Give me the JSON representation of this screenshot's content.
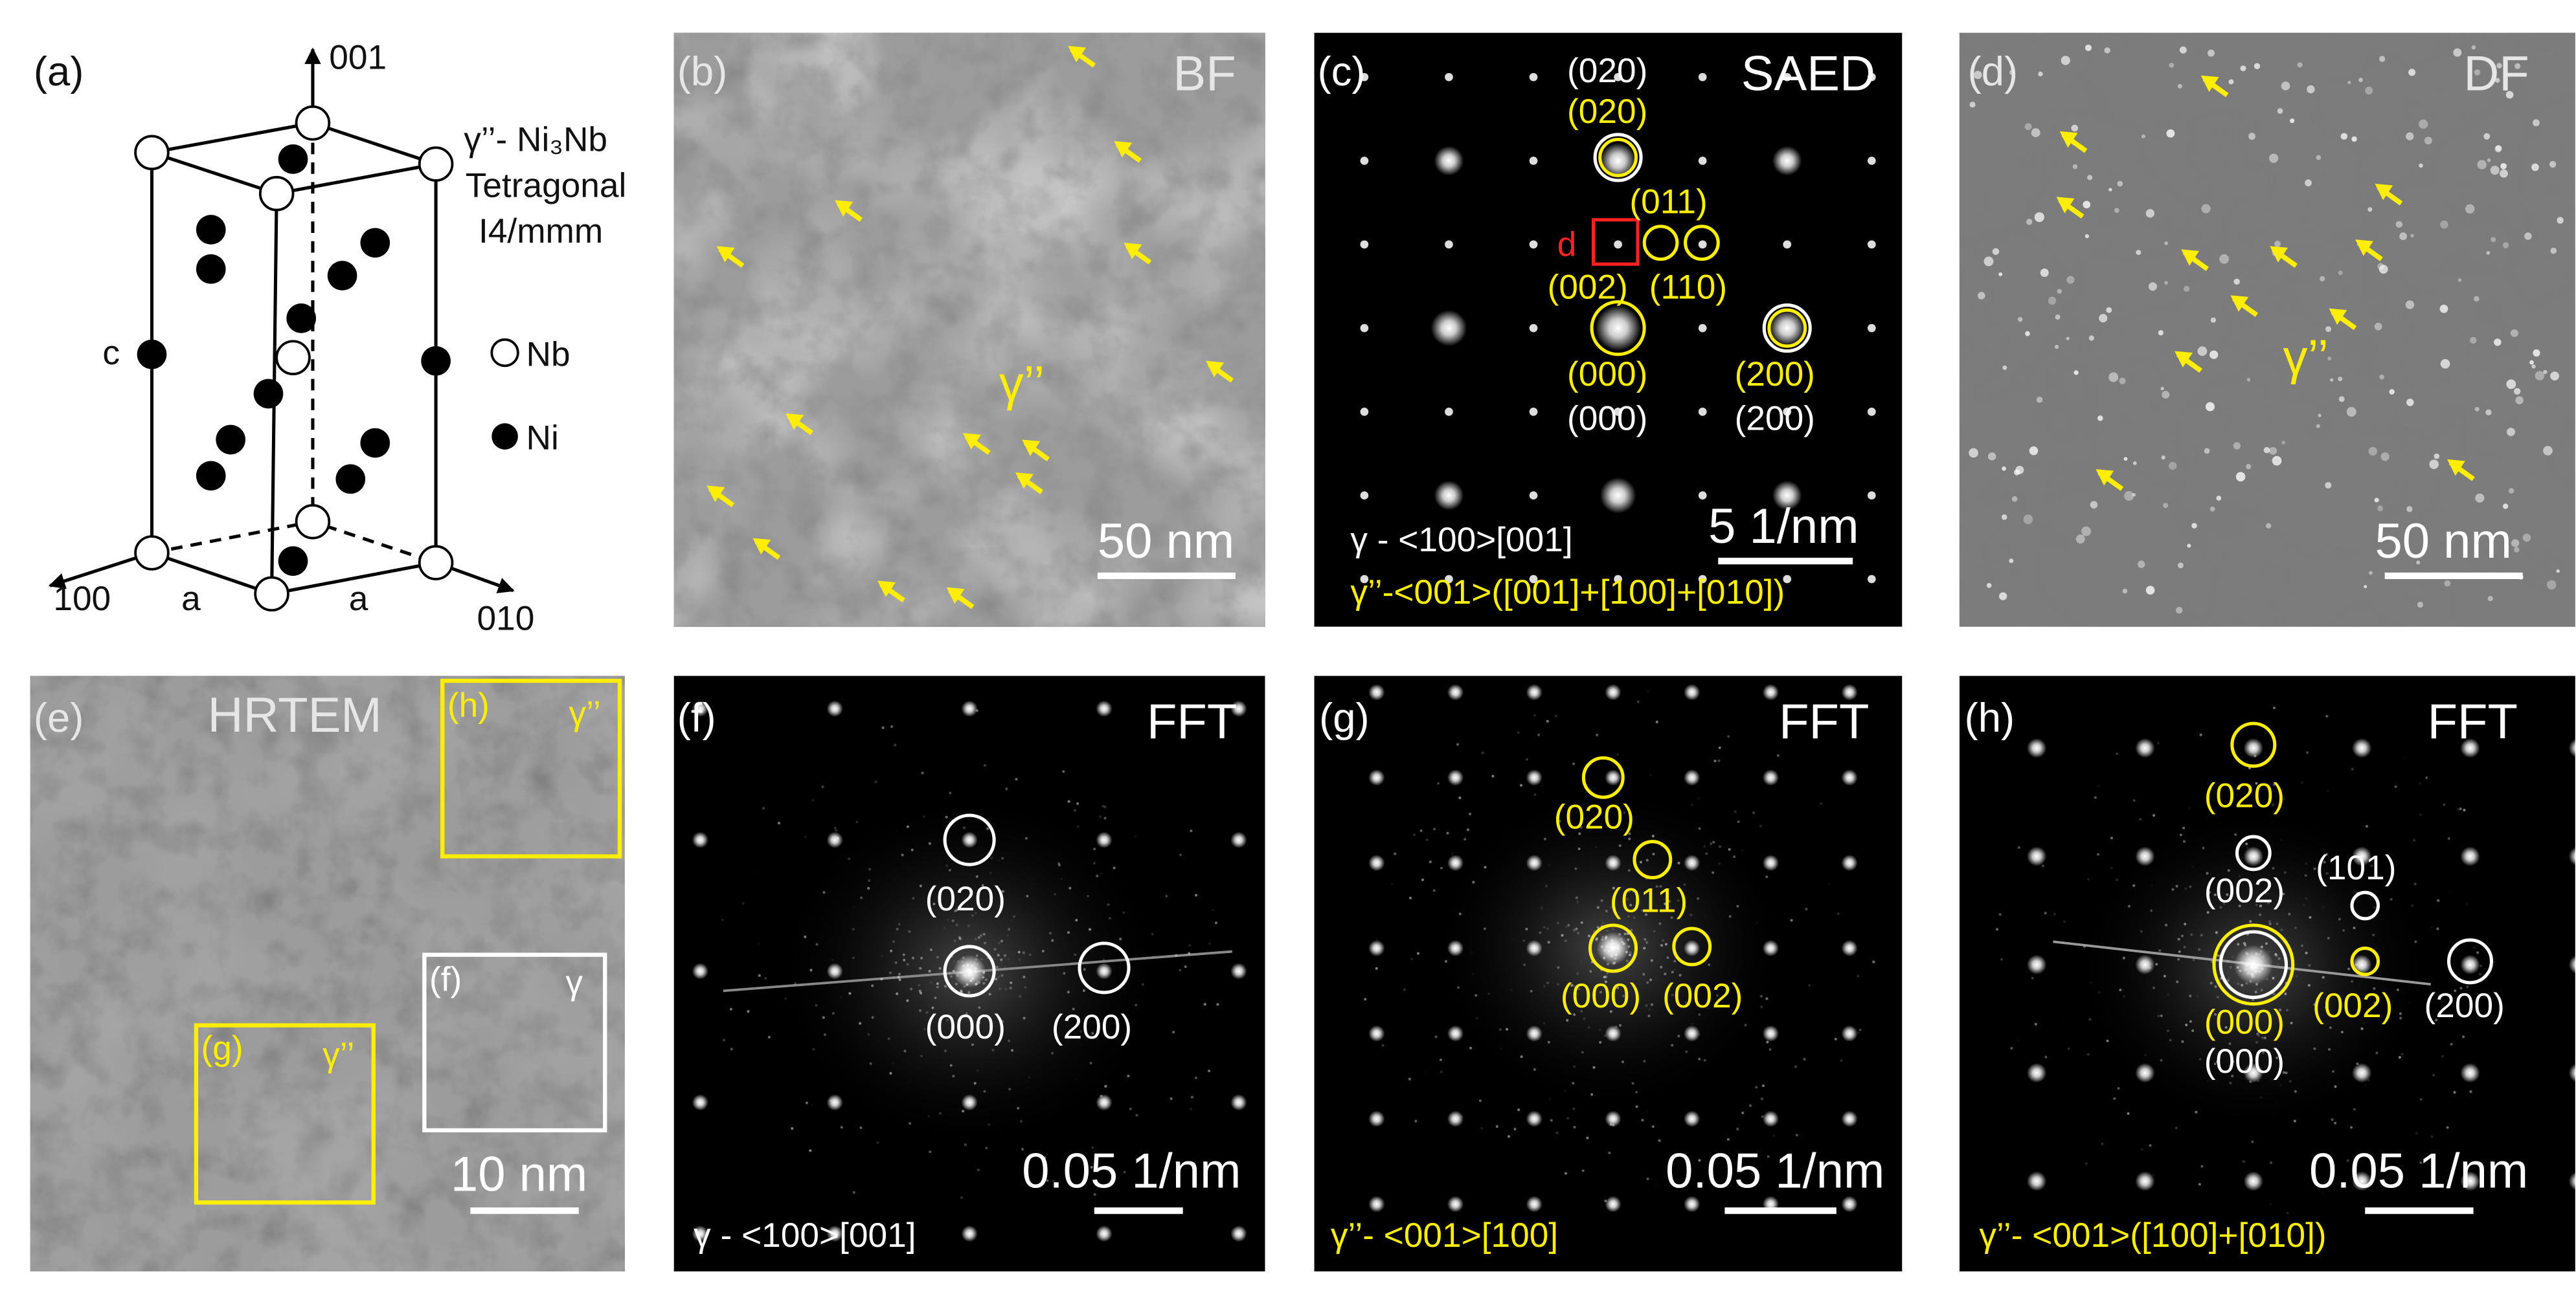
{
  "a": {
    "label": "(a)",
    "axis_001": "001",
    "axis_100": "100",
    "axis_010": "010",
    "edge_a1": "a",
    "edge_a2": "a",
    "edge_c": "c",
    "phase": "γ’’- Ni₃Nb",
    "system": "Tetragonal",
    "space_group": "I4/mmm",
    "legend_nb": "Nb",
    "legend_ni": "Ni"
  },
  "b": {
    "label": "(b)",
    "mode": "BF",
    "phase": "γ’’",
    "scale": "50 nm"
  },
  "c": {
    "label": "(c)",
    "mode": "SAED",
    "spots": [
      "(020)",
      "(020)",
      "(011)",
      "d",
      "(002)",
      "(110)",
      "(000)",
      "(000)",
      "(200)",
      "(200)"
    ],
    "scale": "5 1/nm",
    "zone_gamma": "γ - <100>[001]",
    "zone_gamma2": "γ’’-<001>([001]+[100]+[010])"
  },
  "d": {
    "label": "(d)",
    "mode": "DF",
    "phase": "γ’’",
    "scale": "50 nm"
  },
  "e": {
    "label": "(e)",
    "mode": "HRTEM",
    "box_h": "(h)",
    "box_h_phase": "γ’’",
    "box_g": "(g)",
    "box_g_phase": "γ’’",
    "box_f": "(f)",
    "box_f_phase": "γ",
    "scale": "10 nm"
  },
  "f": {
    "label": "(f)",
    "mode": "FFT",
    "spots": [
      "(020)",
      "(000)",
      "(200)"
    ],
    "scale": "0.05 1/nm",
    "zone": "γ - <100>[001]"
  },
  "g": {
    "label": "(g)",
    "mode": "FFT",
    "spots": [
      "(020)",
      "(011)",
      "(000)",
      "(002)"
    ],
    "scale": "0.05 1/nm",
    "zone": "γ’’- <001>[100]"
  },
  "h": {
    "label": "(h)",
    "mode": "FFT",
    "spots": [
      "(020)",
      "(002)",
      "(101)",
      "(000)",
      "(000)",
      "(002)",
      "(200)"
    ],
    "scale": "0.05 1/nm",
    "zone": "γ’’- <001>([100]+[010])"
  }
}
